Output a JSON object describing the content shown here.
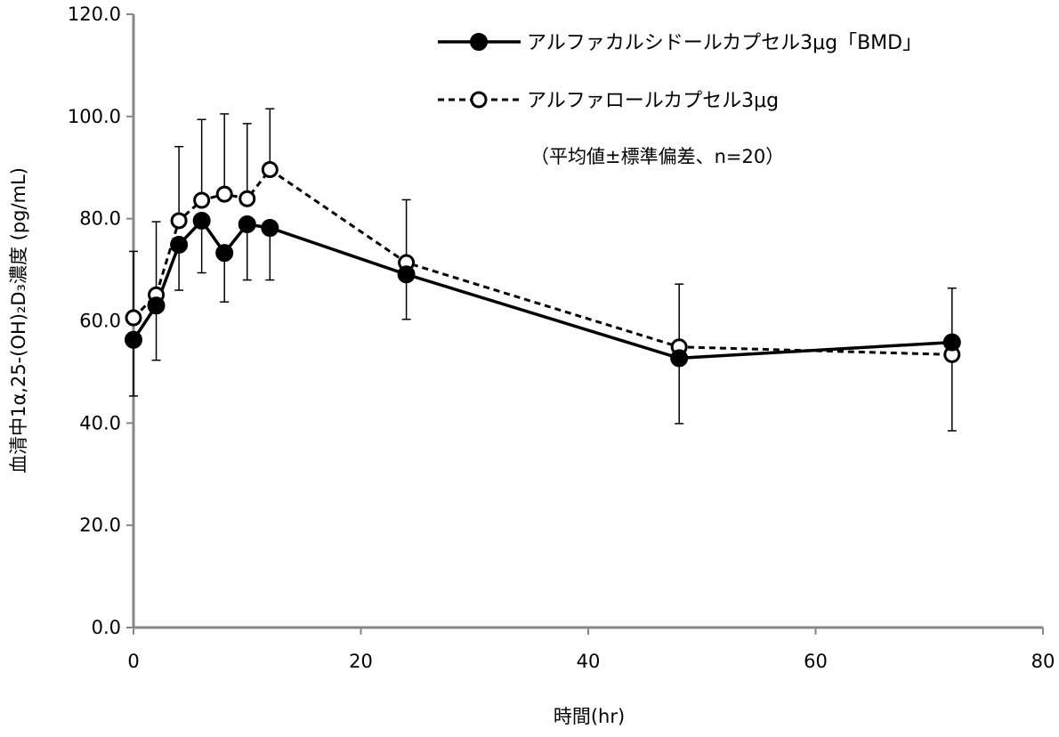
{
  "chart_data": {
    "type": "line",
    "xlabel": "時間(hr)",
    "ylabel": "血清中1α,25-(OH)₂D₃濃度 (pg/mL)",
    "xlim": [
      0,
      80
    ],
    "ylim": [
      0,
      120
    ],
    "xticks": [
      0,
      20,
      40,
      60,
      80
    ],
    "xtick_labels": [
      "0",
      "20",
      "40",
      "60",
      "80"
    ],
    "yticks": [
      0,
      20,
      40,
      60,
      80,
      100,
      120
    ],
    "ytick_labels": [
      "0.0",
      "20.0",
      "40.0",
      "60.0",
      "80.0",
      "100.0",
      "120.0"
    ],
    "grid": false,
    "legend_position": "top-right",
    "annotation": "（平均値±標準偏差、n=20）",
    "series": [
      {
        "name": "アルファカルシドールカプセル3μg「BMD」",
        "line_style": "solid",
        "marker": "filled-circle",
        "color": "#000000",
        "x": [
          0,
          2,
          4,
          6,
          8,
          10,
          12,
          24,
          48,
          72
        ],
        "y": [
          56.3,
          63.0,
          74.9,
          79.6,
          73.3,
          78.9,
          78.2,
          69.1,
          52.7,
          55.8
        ],
        "error_minus": [
          11.0,
          10.7,
          8.9,
          10.2,
          9.6,
          10.9,
          10.2,
          8.8,
          12.8,
          0
        ],
        "error_plus": [
          0,
          0,
          0,
          0,
          0,
          0,
          0,
          0,
          0,
          10.6
        ]
      },
      {
        "name": "アルファロールカプセル3μg",
        "line_style": "dashed",
        "marker": "open-circle",
        "color": "#000000",
        "x": [
          0,
          2,
          4,
          6,
          8,
          10,
          12,
          24,
          48,
          72
        ],
        "y": [
          60.6,
          65.1,
          79.6,
          83.6,
          84.8,
          83.9,
          89.6,
          71.4,
          54.9,
          53.4
        ],
        "error_minus": [
          0,
          0,
          0,
          0,
          0,
          0,
          0,
          0,
          0,
          14.9
        ],
        "error_plus": [
          13.0,
          14.3,
          14.5,
          15.8,
          15.7,
          14.7,
          11.9,
          12.3,
          12.3,
          0
        ]
      }
    ]
  }
}
